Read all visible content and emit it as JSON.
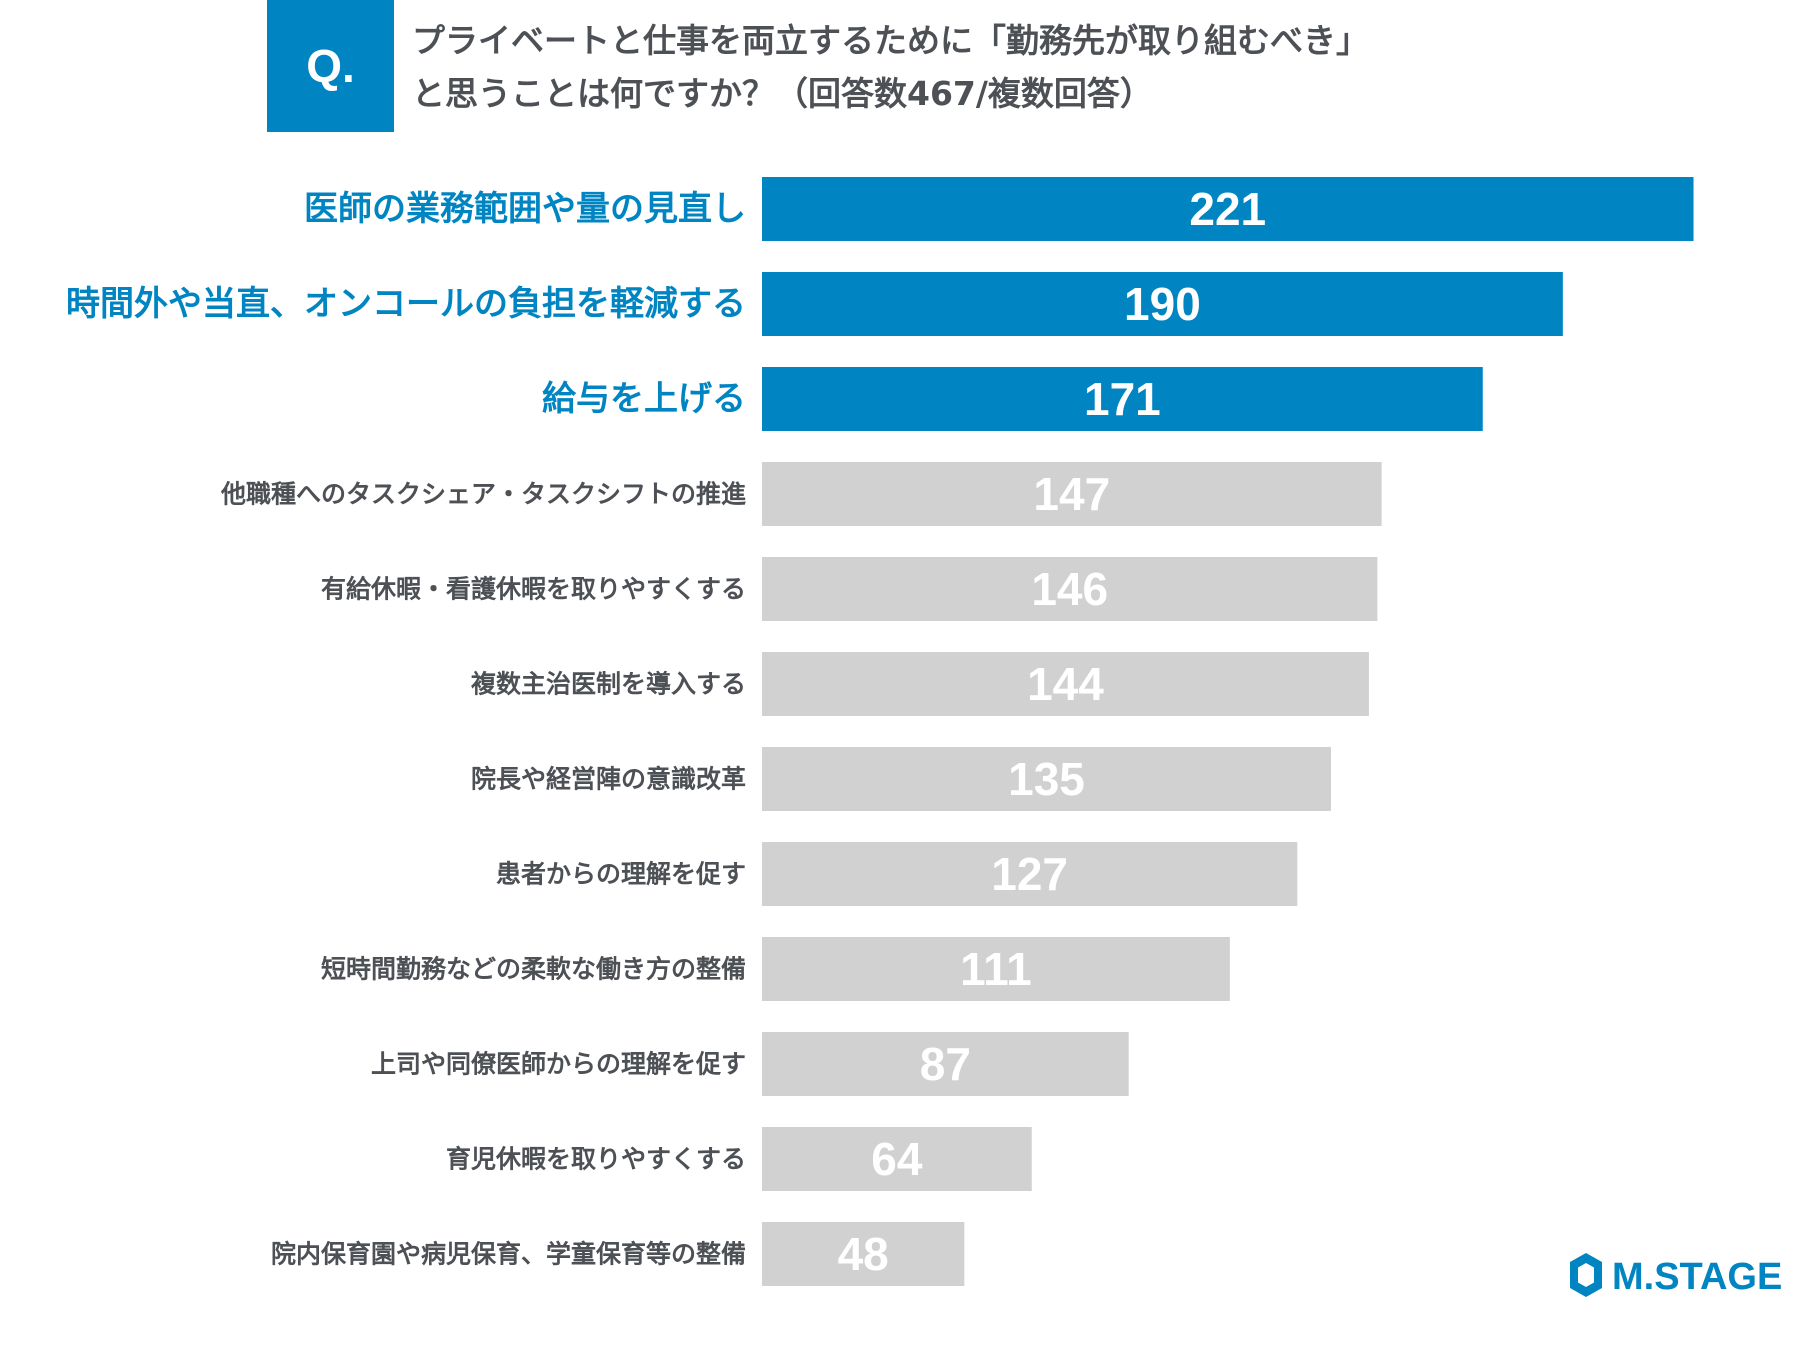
{
  "question": {
    "badge": "Q.",
    "line1": "プライベートと仕事を両立するために「勤務先が取り組むべき」",
    "line2": "と思うことは何ですか？（回答数467/複数回答）"
  },
  "colors": {
    "highlight": "#0085c2",
    "default_bar": "#d2d1d1",
    "highlight_label": "#0085c2",
    "default_label": "#4d5156",
    "badge": "#0085c2",
    "logo": "#0085c2"
  },
  "chart_data": {
    "type": "bar",
    "orientation": "horizontal",
    "categories": [
      "医師の業務範囲や量の見直し",
      "時間外や当直、オンコールの負担を軽減する",
      "給与を上げる",
      "他職種へのタスクシェア・タスクシフトの推進",
      "有給休暇・看護休暇を取りやすくする",
      "複数主治医制を導入する",
      "院長や経営陣の意識改革",
      "患者からの理解を促す",
      "短時間勤務などの柔軟な働き方の整備",
      "上司や同僚医師からの理解を促す",
      "育児休暇を取りやすくする",
      "院内保育園や病児保育、学童保育等の整備"
    ],
    "values": [
      221,
      190,
      171,
      147,
      146,
      144,
      135,
      127,
      111,
      87,
      64,
      48
    ],
    "highlighted": [
      true,
      true,
      true,
      false,
      false,
      false,
      false,
      false,
      false,
      false,
      false,
      false
    ],
    "data_labels": true,
    "grid": false,
    "legend": "none"
  },
  "logo": {
    "text": "M.STAGE"
  }
}
